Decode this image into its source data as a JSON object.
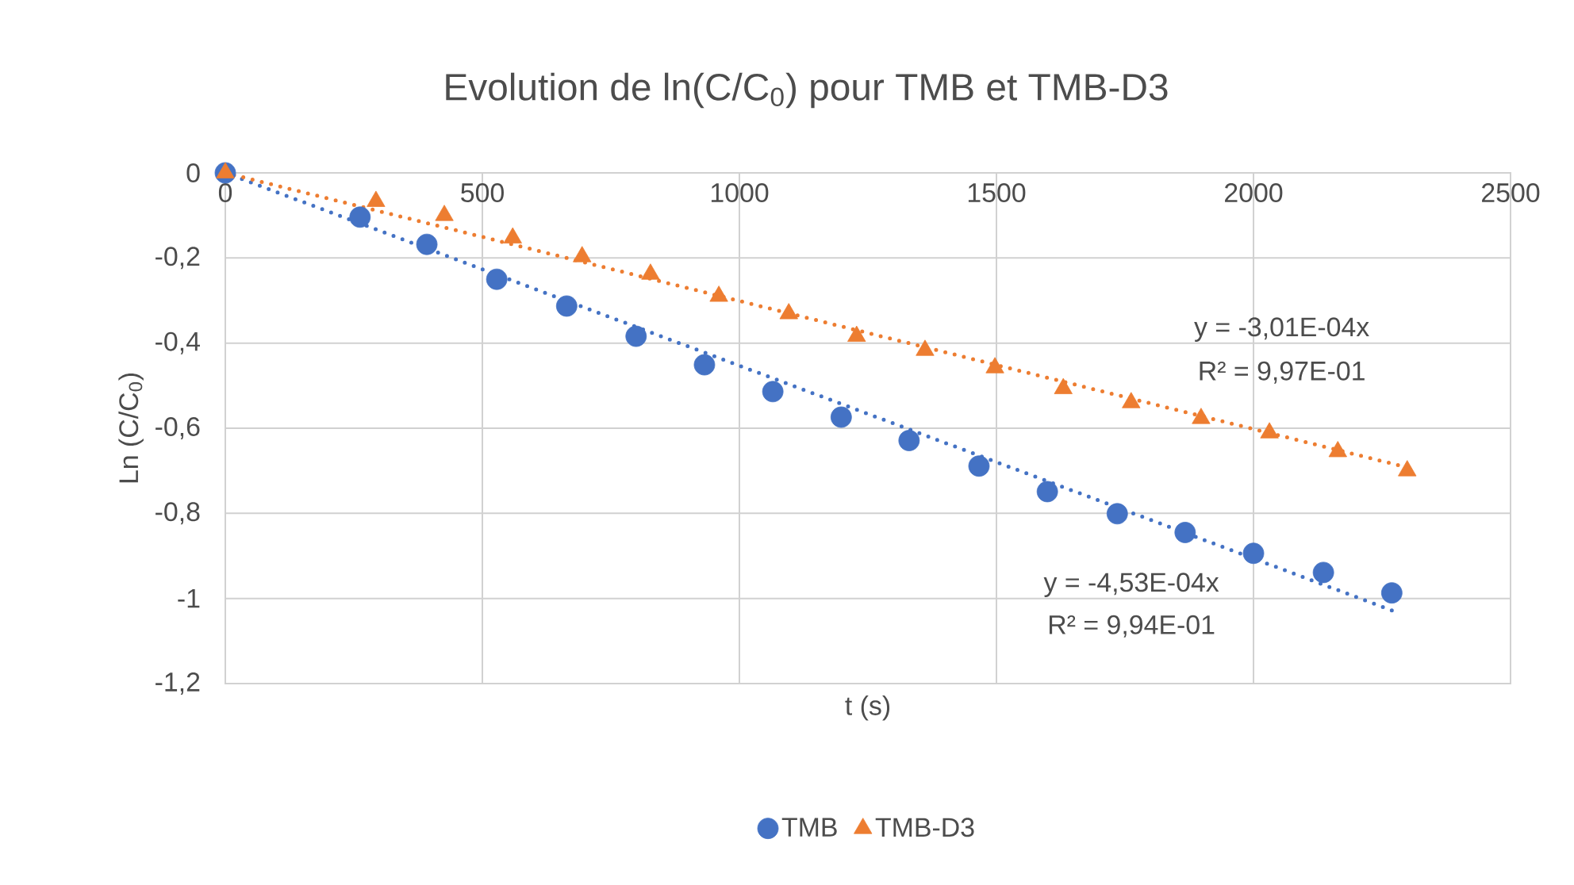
{
  "chart_data": {
    "type": "scatter",
    "title": "Evolution de ln(C/C$_{0}$) pour TMB et TMB-D3",
    "xlabel": "t (s)",
    "ylabel": "Ln (C/C$_{0}$)",
    "xlim": [
      0,
      2500
    ],
    "xticks": [
      0,
      500,
      1000,
      1500,
      2000,
      2500
    ],
    "ylim": [
      -1.2,
      0
    ],
    "yticks": [
      {
        "value": -1.2,
        "label": "-1,2"
      },
      {
        "value": -1,
        "label": "-1"
      },
      {
        "value": -0.8,
        "label": "-0,8"
      },
      {
        "value": -0.6,
        "label": "-0,6"
      },
      {
        "value": -0.4,
        "label": "-0,4"
      },
      {
        "value": -0.2,
        "label": "-0,2"
      },
      {
        "value": 0,
        "label": "0"
      }
    ],
    "grid": true,
    "legend": "bottom",
    "series": [
      {
        "name": "TMB",
        "color": "#4472c4",
        "marker": "circle",
        "x": [
          0,
          262,
          392,
          528,
          664,
          799,
          932,
          1065,
          1198,
          1330,
          1466,
          1599,
          1735,
          1867,
          2000,
          2136,
          2269
        ],
        "values": [
          0,
          -0.104,
          -0.168,
          -0.25,
          -0.313,
          -0.384,
          -0.451,
          -0.514,
          -0.574,
          -0.629,
          -0.689,
          -0.749,
          -0.801,
          -0.845,
          -0.894,
          -0.939,
          -0.987
        ]
      },
      {
        "name": "TMB-D3",
        "color": "#ed7d31",
        "marker": "triangle",
        "x": [
          0,
          293,
          426,
          559,
          694,
          827,
          960,
          1096,
          1228,
          1361,
          1497,
          1630,
          1762,
          1898,
          2031,
          2164,
          2299
        ],
        "values": [
          0,
          -0.067,
          -0.1,
          -0.153,
          -0.197,
          -0.238,
          -0.29,
          -0.331,
          -0.384,
          -0.417,
          -0.458,
          -0.507,
          -0.54,
          -0.577,
          -0.611,
          -0.655,
          -0.7
        ]
      },
      {
        "type": "line",
        "color": "#4472c4",
        "line_style": "dotted",
        "x": [
          0,
          2269
        ],
        "values": [
          0,
          -1.028
        ]
      },
      {
        "type": "line",
        "color": "#ed7d31",
        "line_style": "dotted",
        "x": [
          0,
          2299
        ],
        "values": [
          0,
          -0.692
        ]
      }
    ],
    "annotations": [
      "y = -3,01E-04x",
      "R² = 9,97E-01",
      "y = -4,53E-04x",
      "R² = 9,94E-01"
    ]
  }
}
